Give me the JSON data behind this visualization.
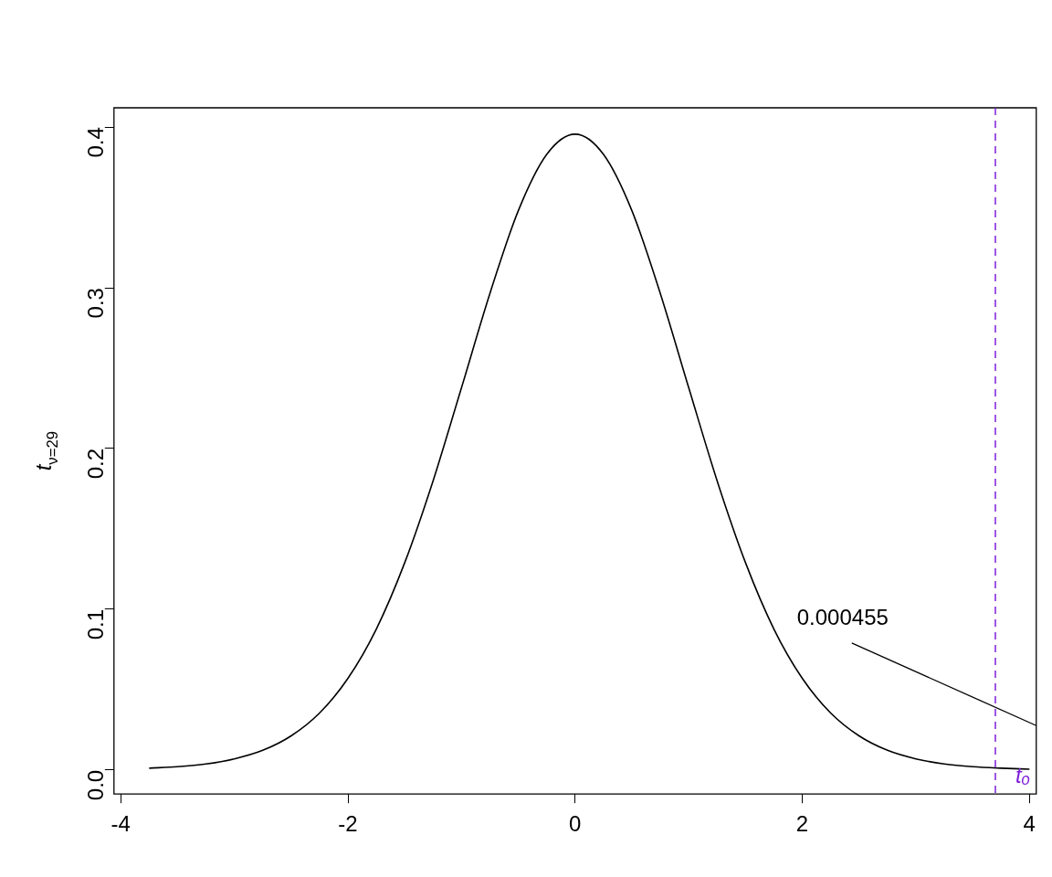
{
  "chart_data": {
    "type": "line",
    "ylabel": "t$_{ν=29}$",
    "x": [
      -3.75,
      -3.5,
      -3.25,
      -3,
      -2.75,
      -2.5,
      -2.25,
      -2,
      -1.75,
      -1.5,
      -1.25,
      -1,
      -0.75,
      -0.5,
      -0.25,
      0,
      0.25,
      0.5,
      0.75,
      1,
      1.25,
      1.5,
      1.75,
      2,
      2.25,
      2.5,
      2.75,
      3,
      3.25,
      3.5,
      3.75,
      4
    ],
    "series": [
      {
        "color": "#000000",
        "values": [
          0.0011,
          0.002,
          0.0037,
          0.0069,
          0.0122,
          0.0212,
          0.0354,
          0.057,
          0.0877,
          0.129,
          0.18,
          0.2379,
          0.2965,
          0.348,
          0.383,
          0.3956,
          0.383,
          0.348,
          0.2965,
          0.2379,
          0.18,
          0.129,
          0.0877,
          0.057,
          0.0354,
          0.0212,
          0.0122,
          0.0069,
          0.0037,
          0.002,
          0.0011,
          0.0005
        ]
      }
    ],
    "xlim": [
      -4.06,
      4.06
    ],
    "ylim": [
      -0.015,
      0.412
    ],
    "xticks": [
      -4,
      -2,
      0,
      2,
      4
    ],
    "yticks": [
      {
        "value": 0,
        "label": "0.0"
      },
      0.1,
      0.2,
      0.3,
      0.4
    ],
    "ref_lines": [
      {
        "axis": "x",
        "value": 3.7,
        "label": "tₒ",
        "color": "#7e1fdb",
        "line_style": "dashed"
      }
    ],
    "annotations": [
      "0.000455"
    ],
    "grid": false,
    "legend": false,
    "marker": "none",
    "line_style": "solid"
  }
}
